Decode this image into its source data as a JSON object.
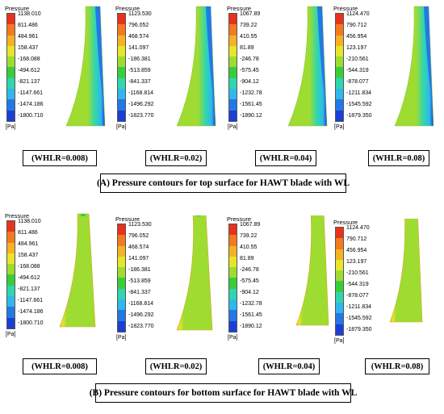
{
  "legend_colors": [
    "#e8321c",
    "#f47a1f",
    "#f5b323",
    "#e9e52a",
    "#9fdc31",
    "#36cf3a",
    "#2fd6b0",
    "#2fb8ea",
    "#2478e6",
    "#1a3fd6"
  ],
  "top": {
    "caption": "(A) Pressure contours for top surface for HAWT blade with WL",
    "panels": [
      {
        "title": "Pressure",
        "unit": "[Pa]",
        "ticks": [
          "1138.010",
          "811.486",
          "484.961",
          "158.437",
          "-168.088",
          "-494.612",
          "-821.137",
          "-1147.661",
          "-1474.186",
          "-1800.710"
        ],
        "label": "(WHLR=0.008)"
      },
      {
        "title": "Pressure",
        "unit": "[Pa]",
        "ticks": [
          "1123.530",
          "796.052",
          "468.574",
          "141.097",
          "-186.381",
          "-513.859",
          "-841.337",
          "-1168.814",
          "-1496.292",
          "-1823.770"
        ],
        "label": "(WHLR=0.02)"
      },
      {
        "title": "Pressure",
        "unit": "[Pa]",
        "ticks": [
          "1067.89",
          "739.22",
          "410.55",
          "81.89",
          "-246.78",
          "-575.45",
          "-904.12",
          "-1232.78",
          "-1561.45",
          "-1890.12"
        ],
        "label": "(WHLR=0.04)"
      },
      {
        "title": "Pressure",
        "unit": "[Pa]",
        "ticks": [
          "1124.470",
          "790.712",
          "456.954",
          "123.197",
          "-210.561",
          "-544.319",
          "-878.077",
          "-1211.834",
          "-1545.592",
          "-1879.350"
        ],
        "label": "(WHLR=0.08)"
      }
    ]
  },
  "bottom": {
    "caption": "(B) Pressure contours for bottom surface for HAWT blade with WL",
    "panels": [
      {
        "title": "Pressure",
        "unit": "[Pa]",
        "ticks": [
          "1138.010",
          "811.486",
          "484.961",
          "158.437",
          "-168.088",
          "-494.612",
          "-821.137",
          "-1147.661",
          "-1474.186",
          "-1800.710"
        ],
        "label": "(WHLR=0.008)"
      },
      {
        "title": "Pressure",
        "unit": "[Pa]",
        "ticks": [
          "1123.530",
          "796.052",
          "468.574",
          "141.097",
          "-186.381",
          "-513.859",
          "-841.337",
          "-1168.814",
          "-1496.292",
          "-1823.770"
        ],
        "label": "(WHLR=0.02)"
      },
      {
        "title": "Pressure",
        "unit": "[Pa]",
        "ticks": [
          "1067.89",
          "739.22",
          "410.55",
          "81.89",
          "-246.78",
          "-575.45",
          "-904.12",
          "-1232.78",
          "-1561.45",
          "-1890.12"
        ],
        "label": "(WHLR=0.04)"
      },
      {
        "title": "Pressure",
        "unit": "[Pa]",
        "ticks": [
          "1124.470",
          "790.712",
          "456.954",
          "123.197",
          "-210.561",
          "-544.319",
          "-878.077",
          "-1211.834",
          "-1545.592",
          "-1879.350"
        ],
        "label": "(WHLR=0.08)"
      }
    ]
  }
}
